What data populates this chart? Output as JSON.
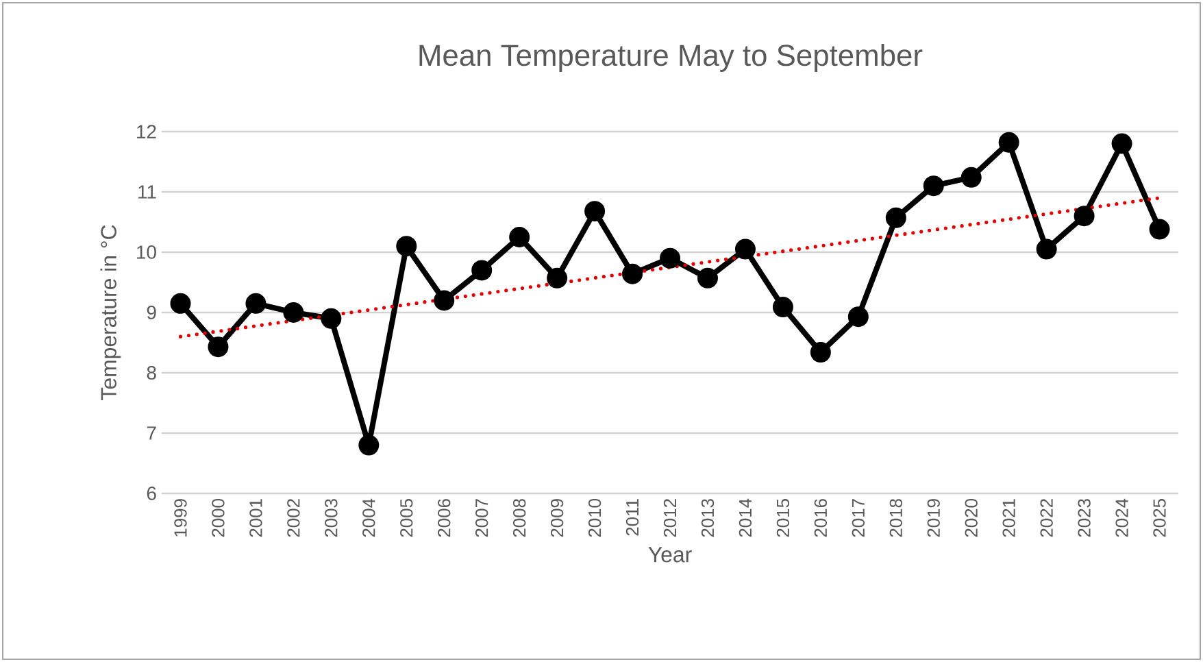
{
  "chart_data": {
    "type": "line",
    "title": "Mean Temperature  May to September",
    "xlabel": "Year",
    "ylabel": "Temperature in °C",
    "categories": [
      "1999",
      "2000",
      "2001",
      "2002",
      "2003",
      "2004",
      "2005",
      "2006",
      "2007",
      "2008",
      "2009",
      "2010",
      "2011",
      "2012",
      "2013",
      "2014",
      "2015",
      "2016",
      "2017",
      "2018",
      "2019",
      "2020",
      "2021",
      "2022",
      "2023",
      "2024",
      "2025"
    ],
    "series": [
      {
        "color": "#000000",
        "marker": "circle",
        "line_style": "solid",
        "values": [
          9.15,
          8.43,
          9.15,
          9.0,
          8.9,
          6.8,
          10.1,
          9.2,
          9.7,
          10.25,
          9.57,
          10.68,
          9.64,
          9.9,
          9.57,
          10.05,
          9.09,
          8.34,
          8.93,
          10.57,
          11.1,
          11.24,
          11.82,
          10.05,
          10.6,
          11.8,
          10.38
        ]
      },
      {
        "type": "line",
        "color": "#e00000",
        "marker": "none",
        "line_style": "dotted",
        "values": [
          8.6,
          null,
          null,
          null,
          null,
          null,
          null,
          null,
          null,
          null,
          null,
          null,
          null,
          null,
          null,
          null,
          null,
          null,
          null,
          null,
          null,
          null,
          null,
          null,
          null,
          null,
          10.9
        ]
      }
    ],
    "ylim": [
      6,
      12
    ],
    "yticks": [
      6,
      7,
      8,
      9,
      10,
      11,
      12
    ],
    "grid": "y"
  }
}
